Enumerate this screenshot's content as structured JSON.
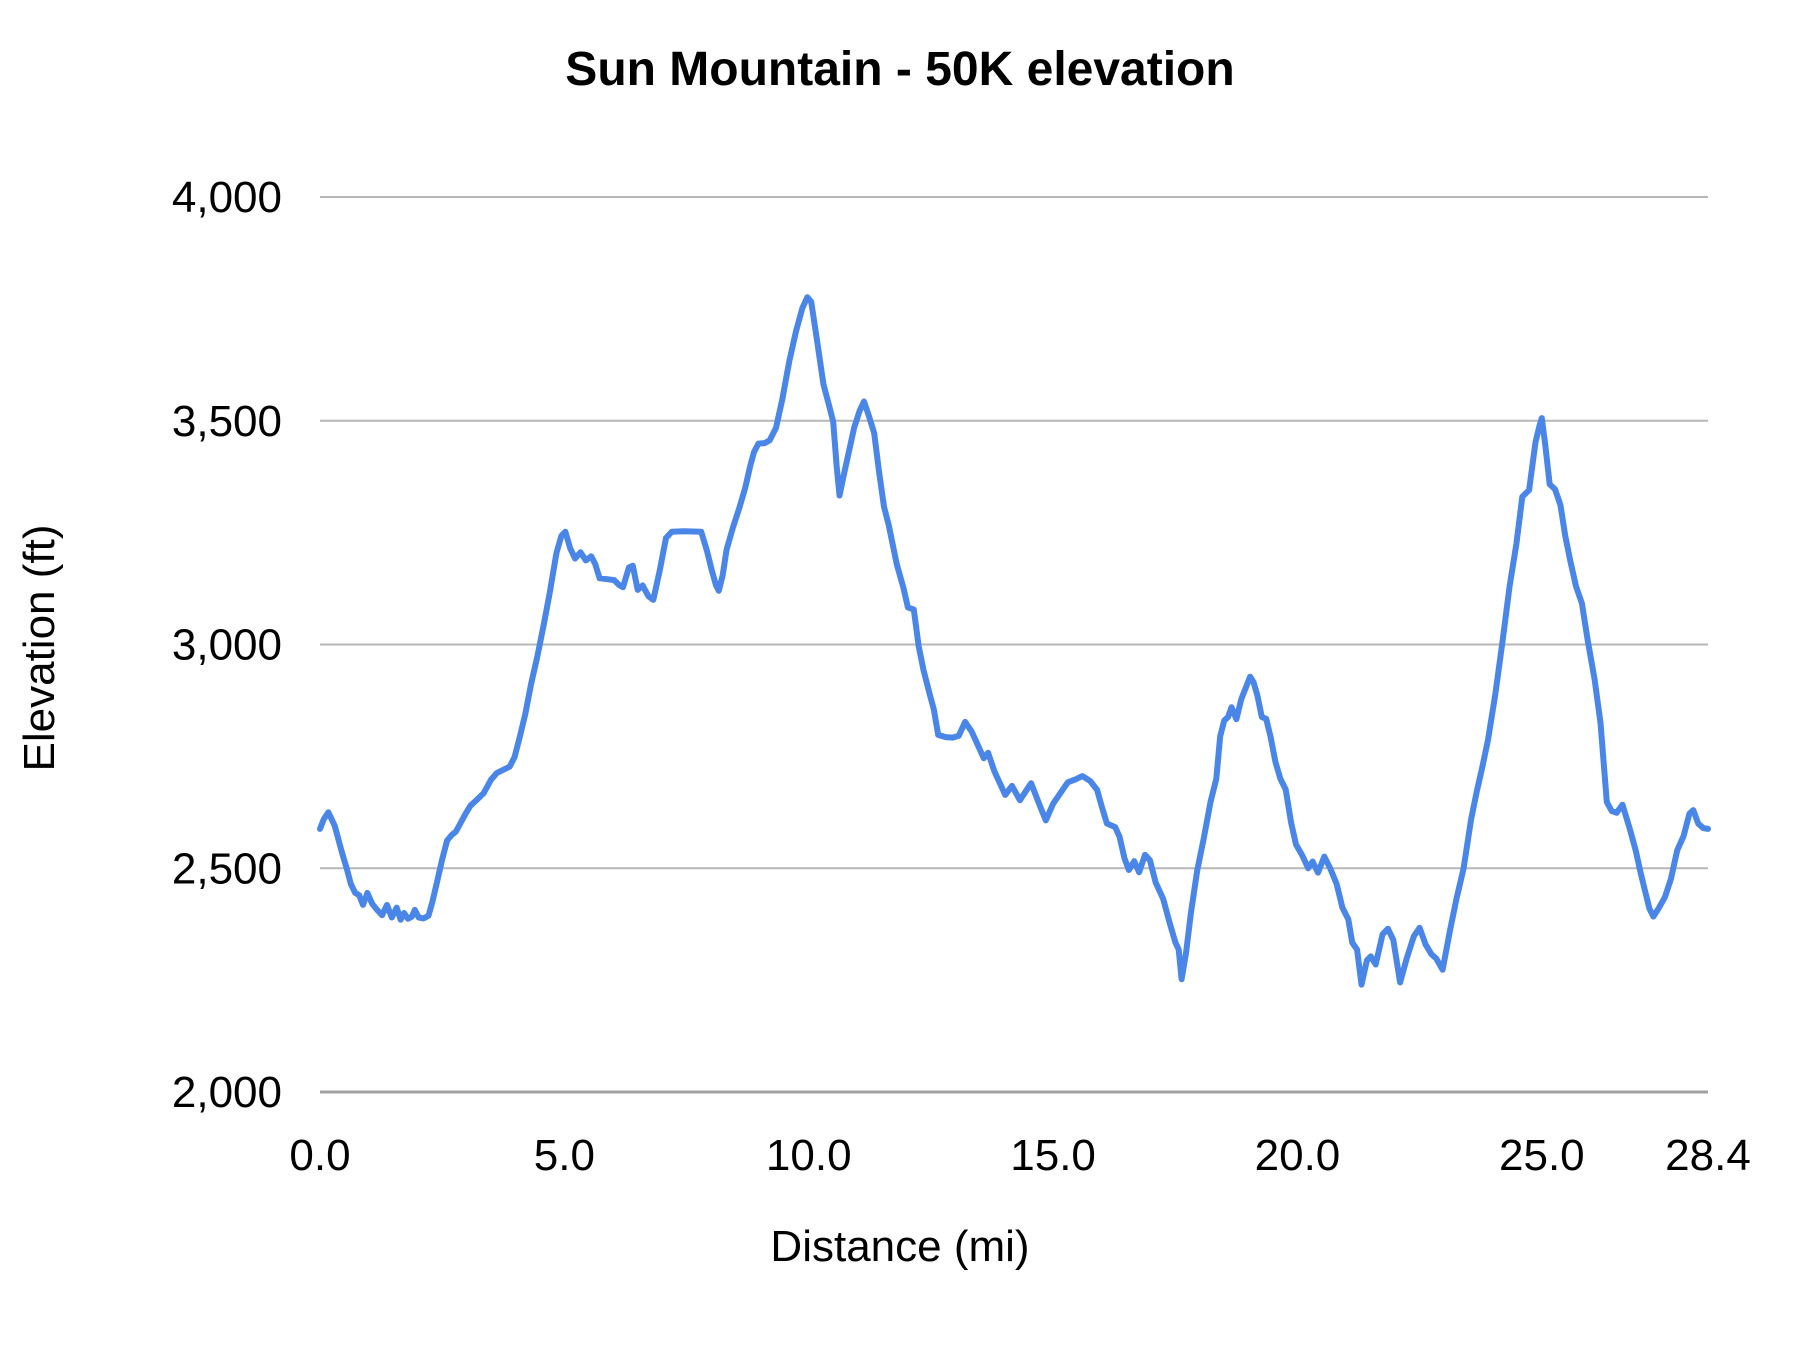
{
  "title": "Sun Mountain - 50K elevation",
  "chart_data": {
    "type": "line",
    "title": "Sun Mountain - 50K elevation",
    "xlabel": "Distance (mi)",
    "ylabel": "Elevation (ft)",
    "xlim": [
      0,
      28.4
    ],
    "ylim": [
      2000,
      4000
    ],
    "x_tick_values": [
      0,
      5,
      10,
      15,
      20,
      25,
      28.4
    ],
    "x_ticks": [
      "0.0",
      "5.0",
      "10.0",
      "15.0",
      "20.0",
      "25.0",
      "28.4"
    ],
    "y_tick_values": [
      2000,
      2500,
      3000,
      3500,
      4000
    ],
    "y_ticks": [
      "2,000",
      "2,500",
      "3,000",
      "3,500",
      "4,000"
    ],
    "grid": true,
    "legend": "none",
    "line_color": "#4a86e8",
    "gridline_color": "#b7b7b7",
    "baseline_color": "#a2a2a2",
    "series": [
      {
        "name": "elevation",
        "points": [
          [
            0.0,
            2588
          ],
          [
            0.08,
            2610
          ],
          [
            0.17,
            2625
          ],
          [
            0.3,
            2595
          ],
          [
            0.45,
            2535
          ],
          [
            0.55,
            2498
          ],
          [
            0.63,
            2465
          ],
          [
            0.72,
            2445
          ],
          [
            0.8,
            2440
          ],
          [
            0.88,
            2418
          ],
          [
            0.97,
            2445
          ],
          [
            1.07,
            2420
          ],
          [
            1.16,
            2408
          ],
          [
            1.27,
            2395
          ],
          [
            1.37,
            2418
          ],
          [
            1.47,
            2390
          ],
          [
            1.57,
            2412
          ],
          [
            1.65,
            2385
          ],
          [
            1.72,
            2400
          ],
          [
            1.8,
            2387
          ],
          [
            1.88,
            2392
          ],
          [
            1.94,
            2407
          ],
          [
            2.02,
            2390
          ],
          [
            2.12,
            2388
          ],
          [
            2.22,
            2394
          ],
          [
            2.3,
            2425
          ],
          [
            2.4,
            2472
          ],
          [
            2.5,
            2520
          ],
          [
            2.6,
            2562
          ],
          [
            2.7,
            2575
          ],
          [
            2.78,
            2582
          ],
          [
            2.88,
            2602
          ],
          [
            2.98,
            2622
          ],
          [
            3.08,
            2640
          ],
          [
            3.2,
            2652
          ],
          [
            3.35,
            2668
          ],
          [
            3.5,
            2698
          ],
          [
            3.62,
            2713
          ],
          [
            3.75,
            2720
          ],
          [
            3.88,
            2727
          ],
          [
            3.98,
            2748
          ],
          [
            4.08,
            2790
          ],
          [
            4.2,
            2845
          ],
          [
            4.32,
            2912
          ],
          [
            4.45,
            2975
          ],
          [
            4.58,
            3045
          ],
          [
            4.7,
            3115
          ],
          [
            4.84,
            3205
          ],
          [
            4.94,
            3243
          ],
          [
            5.02,
            3252
          ],
          [
            5.12,
            3215
          ],
          [
            5.22,
            3192
          ],
          [
            5.33,
            3206
          ],
          [
            5.44,
            3188
          ],
          [
            5.55,
            3197
          ],
          [
            5.63,
            3180
          ],
          [
            5.72,
            3148
          ],
          [
            5.88,
            3146
          ],
          [
            6.02,
            3144
          ],
          [
            6.12,
            3133
          ],
          [
            6.2,
            3128
          ],
          [
            6.32,
            3172
          ],
          [
            6.4,
            3176
          ],
          [
            6.5,
            3122
          ],
          [
            6.6,
            3132
          ],
          [
            6.72,
            3108
          ],
          [
            6.82,
            3100
          ],
          [
            6.95,
            3165
          ],
          [
            7.08,
            3238
          ],
          [
            7.2,
            3252
          ],
          [
            7.45,
            3253
          ],
          [
            7.8,
            3252
          ],
          [
            7.92,
            3208
          ],
          [
            8.02,
            3164
          ],
          [
            8.1,
            3133
          ],
          [
            8.16,
            3120
          ],
          [
            8.24,
            3155
          ],
          [
            8.32,
            3212
          ],
          [
            8.45,
            3262
          ],
          [
            8.58,
            3305
          ],
          [
            8.7,
            3350
          ],
          [
            8.8,
            3398
          ],
          [
            8.88,
            3430
          ],
          [
            8.97,
            3449
          ],
          [
            9.1,
            3450
          ],
          [
            9.2,
            3456
          ],
          [
            9.33,
            3484
          ],
          [
            9.46,
            3548
          ],
          [
            9.6,
            3632
          ],
          [
            9.74,
            3700
          ],
          [
            9.87,
            3752
          ],
          [
            9.97,
            3776
          ],
          [
            10.05,
            3766
          ],
          [
            10.17,
            3680
          ],
          [
            10.3,
            3582
          ],
          [
            10.42,
            3532
          ],
          [
            10.5,
            3498
          ],
          [
            10.57,
            3400
          ],
          [
            10.63,
            3333
          ],
          [
            10.72,
            3380
          ],
          [
            10.82,
            3430
          ],
          [
            10.93,
            3485
          ],
          [
            11.04,
            3522
          ],
          [
            11.13,
            3543
          ],
          [
            11.24,
            3508
          ],
          [
            11.34,
            3472
          ],
          [
            11.44,
            3385
          ],
          [
            11.54,
            3308
          ],
          [
            11.64,
            3265
          ],
          [
            11.8,
            3180
          ],
          [
            11.94,
            3126
          ],
          [
            12.03,
            3083
          ],
          [
            12.15,
            3078
          ],
          [
            12.25,
            2996
          ],
          [
            12.35,
            2942
          ],
          [
            12.46,
            2895
          ],
          [
            12.56,
            2855
          ],
          [
            12.65,
            2798
          ],
          [
            12.8,
            2793
          ],
          [
            12.95,
            2792
          ],
          [
            13.07,
            2796
          ],
          [
            13.2,
            2827
          ],
          [
            13.33,
            2806
          ],
          [
            13.47,
            2773
          ],
          [
            13.58,
            2746
          ],
          [
            13.67,
            2758
          ],
          [
            13.8,
            2716
          ],
          [
            13.92,
            2688
          ],
          [
            14.02,
            2664
          ],
          [
            14.16,
            2684
          ],
          [
            14.32,
            2652
          ],
          [
            14.55,
            2690
          ],
          [
            14.7,
            2648
          ],
          [
            14.85,
            2607
          ],
          [
            15.0,
            2644
          ],
          [
            15.15,
            2668
          ],
          [
            15.3,
            2692
          ],
          [
            15.45,
            2698
          ],
          [
            15.6,
            2706
          ],
          [
            15.76,
            2695
          ],
          [
            15.9,
            2675
          ],
          [
            16.0,
            2636
          ],
          [
            16.1,
            2600
          ],
          [
            16.27,
            2592
          ],
          [
            16.36,
            2570
          ],
          [
            16.46,
            2522
          ],
          [
            16.55,
            2496
          ],
          [
            16.66,
            2516
          ],
          [
            16.76,
            2491
          ],
          [
            16.88,
            2530
          ],
          [
            16.98,
            2518
          ],
          [
            17.1,
            2468
          ],
          [
            17.25,
            2432
          ],
          [
            17.38,
            2380
          ],
          [
            17.5,
            2335
          ],
          [
            17.57,
            2318
          ],
          [
            17.63,
            2252
          ],
          [
            17.72,
            2310
          ],
          [
            17.82,
            2400
          ],
          [
            17.95,
            2496
          ],
          [
            18.08,
            2565
          ],
          [
            18.22,
            2648
          ],
          [
            18.34,
            2700
          ],
          [
            18.42,
            2795
          ],
          [
            18.5,
            2830
          ],
          [
            18.58,
            2838
          ],
          [
            18.65,
            2860
          ],
          [
            18.75,
            2833
          ],
          [
            18.85,
            2878
          ],
          [
            18.95,
            2905
          ],
          [
            19.03,
            2928
          ],
          [
            19.1,
            2916
          ],
          [
            19.18,
            2886
          ],
          [
            19.27,
            2838
          ],
          [
            19.36,
            2834
          ],
          [
            19.45,
            2793
          ],
          [
            19.55,
            2737
          ],
          [
            19.65,
            2700
          ],
          [
            19.76,
            2676
          ],
          [
            19.87,
            2602
          ],
          [
            19.97,
            2553
          ],
          [
            20.1,
            2528
          ],
          [
            20.22,
            2500
          ],
          [
            20.31,
            2515
          ],
          [
            20.42,
            2490
          ],
          [
            20.55,
            2526
          ],
          [
            20.67,
            2500
          ],
          [
            20.8,
            2465
          ],
          [
            20.92,
            2412
          ],
          [
            21.04,
            2386
          ],
          [
            21.12,
            2334
          ],
          [
            21.22,
            2318
          ],
          [
            21.31,
            2240
          ],
          [
            21.42,
            2294
          ],
          [
            21.5,
            2303
          ],
          [
            21.6,
            2285
          ],
          [
            21.74,
            2352
          ],
          [
            21.85,
            2365
          ],
          [
            21.96,
            2340
          ],
          [
            22.1,
            2245
          ],
          [
            22.24,
            2300
          ],
          [
            22.38,
            2348
          ],
          [
            22.5,
            2367
          ],
          [
            22.62,
            2330
          ],
          [
            22.74,
            2308
          ],
          [
            22.84,
            2298
          ],
          [
            22.97,
            2273
          ],
          [
            23.12,
            2360
          ],
          [
            23.25,
            2430
          ],
          [
            23.4,
            2500
          ],
          [
            23.55,
            2608
          ],
          [
            23.67,
            2672
          ],
          [
            23.78,
            2725
          ],
          [
            23.9,
            2788
          ],
          [
            24.05,
            2890
          ],
          [
            24.2,
            3010
          ],
          [
            24.34,
            3130
          ],
          [
            24.48,
            3225
          ],
          [
            24.6,
            3330
          ],
          [
            24.74,
            3345
          ],
          [
            24.87,
            3452
          ],
          [
            24.95,
            3488
          ],
          [
            25.0,
            3506
          ],
          [
            25.07,
            3445
          ],
          [
            25.16,
            3358
          ],
          [
            25.27,
            3347
          ],
          [
            25.38,
            3312
          ],
          [
            25.48,
            3242
          ],
          [
            25.58,
            3188
          ],
          [
            25.7,
            3130
          ],
          [
            25.82,
            3092
          ],
          [
            25.94,
            3008
          ],
          [
            26.08,
            2922
          ],
          [
            26.2,
            2825
          ],
          [
            26.33,
            2648
          ],
          [
            26.43,
            2628
          ],
          [
            26.53,
            2624
          ],
          [
            26.65,
            2642
          ],
          [
            26.8,
            2588
          ],
          [
            26.92,
            2540
          ],
          [
            27.02,
            2490
          ],
          [
            27.12,
            2446
          ],
          [
            27.2,
            2410
          ],
          [
            27.28,
            2392
          ],
          [
            27.4,
            2412
          ],
          [
            27.52,
            2436
          ],
          [
            27.64,
            2476
          ],
          [
            27.77,
            2540
          ],
          [
            27.9,
            2572
          ],
          [
            28.02,
            2622
          ],
          [
            28.1,
            2630
          ],
          [
            28.2,
            2600
          ],
          [
            28.3,
            2590
          ],
          [
            28.4,
            2588
          ]
        ]
      }
    ]
  }
}
